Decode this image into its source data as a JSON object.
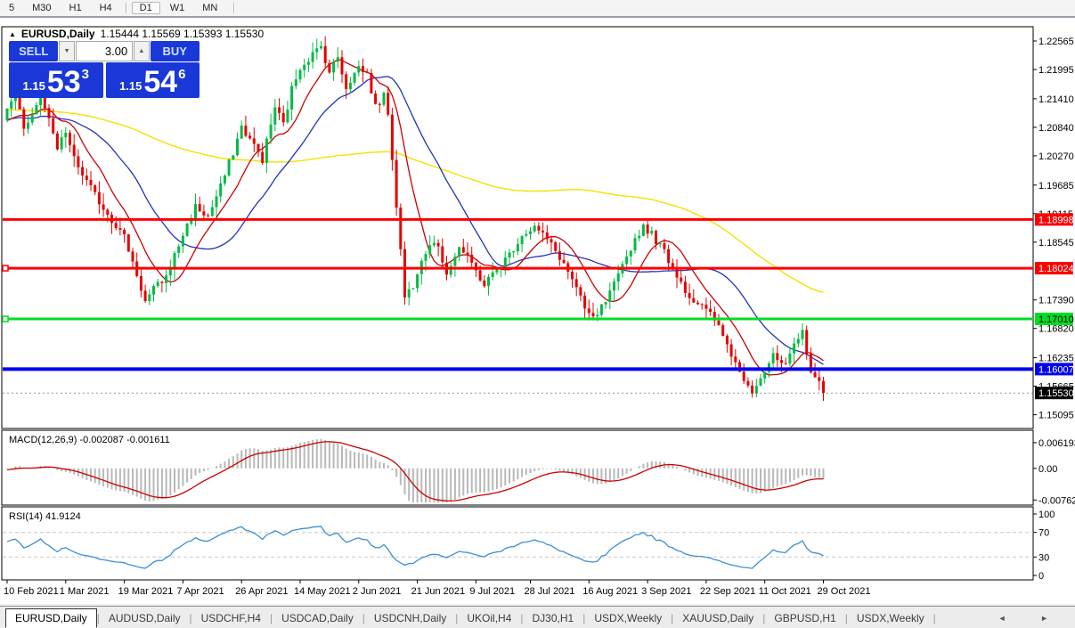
{
  "toolbar": {
    "timeframes": [
      {
        "label": "5"
      },
      {
        "label": "M30"
      },
      {
        "label": "H1"
      },
      {
        "label": "H4"
      },
      {
        "label": "D1",
        "active": true,
        "divider_before": true
      },
      {
        "label": "W1"
      },
      {
        "label": "MN"
      }
    ]
  },
  "chart_title": {
    "marker": "▲",
    "symbol": "EURUSD,Daily",
    "ohlc": "1.15444 1.15569 1.15393 1.15530"
  },
  "trade_widget": {
    "sell_label": "SELL",
    "buy_label": "BUY",
    "volume": "3.00",
    "spin_down": "▼",
    "spin_up": "▲",
    "sell_prefix": "1.15",
    "sell_main": "53",
    "sell_sup": "3",
    "buy_prefix": "1.15",
    "buy_main": "54",
    "buy_sup": "6",
    "accent": "#1a38d8"
  },
  "tabbar": {
    "tabs": [
      {
        "label": "EURUSD,Daily",
        "active": true
      },
      {
        "label": "AUDUSD,Daily"
      },
      {
        "label": "USDCHF,H4"
      },
      {
        "label": "USDCAD,Daily"
      },
      {
        "label": "USDCNH,Daily"
      },
      {
        "label": "UKOil,H4"
      },
      {
        "label": "DJ30,H1"
      },
      {
        "label": "USDX,Weekly"
      },
      {
        "label": "XAUUSD,Daily"
      },
      {
        "label": "GBPUSD,H1"
      },
      {
        "label": "USDX,Weekly"
      }
    ],
    "scroll_arrows": "◄ ►"
  },
  "chart_data": {
    "type": "candlestick",
    "symbol": "EURUSD",
    "timeframe": "Daily",
    "colors": {
      "bull": "#00bb44",
      "bear": "#e60000",
      "ma_fast": "#cc0000",
      "ma_mid": "#2233bb",
      "ma_slow": "#f2e200",
      "macd_hist": "#b8b8b8",
      "macd_signal": "#cc0000",
      "rsi_line": "#3d8fd1",
      "rsi_level": "#c8c8c8"
    },
    "price_panel": {
      "ylim": [
        1.14821,
        1.2285
      ],
      "ticks": [
        {
          "v": 1.22565,
          "label": "1.22565"
        },
        {
          "v": 1.21995,
          "label": "1.21995"
        },
        {
          "v": 1.2141,
          "label": "1.21410"
        },
        {
          "v": 1.2084,
          "label": "1.20840"
        },
        {
          "v": 1.2027,
          "label": "1.20270"
        },
        {
          "v": 1.19685,
          "label": "1.19685"
        },
        {
          "v": 1.19115,
          "label": "1.19115"
        },
        {
          "v": 1.18545,
          "label": "1.18545"
        },
        {
          "v": 1.1739,
          "label": "1.17390"
        },
        {
          "v": 1.1682,
          "label": "1.16820"
        },
        {
          "v": 1.16235,
          "label": "1.16235"
        },
        {
          "v": 1.15665,
          "label": "1.15665"
        },
        {
          "v": 1.15095,
          "label": "1.15095"
        }
      ],
      "levels": [
        {
          "price": 1.18998,
          "label": "1.18998",
          "color": "#ff0000",
          "text": "#ffffff",
          "width": 3,
          "handle": false
        },
        {
          "price": 1.18024,
          "label": "1.18024",
          "color": "#ff0000",
          "text": "#ffffff",
          "width": 3,
          "handle": true
        },
        {
          "price": 1.1701,
          "label": "1.17010",
          "color": "#00dd22",
          "text": "#000000",
          "width": 3,
          "handle": true
        },
        {
          "price": 1.16007,
          "label": "1.16007",
          "color": "#0000ee",
          "text": "#ffffff",
          "width": 4,
          "handle": false
        }
      ],
      "current_price": {
        "price": 1.1553,
        "label": "1.15530",
        "color": "#000000",
        "text": "#ffffff"
      },
      "last_close": 1.1553,
      "warmup": {
        "count": 110,
        "start": 1.215,
        "end": 1.2095
      },
      "anchors": [
        [
          0,
          1.212
        ],
        [
          2,
          1.214
        ],
        [
          4,
          1.2085
        ],
        [
          6,
          1.211
        ],
        [
          8,
          1.215
        ],
        [
          10,
          1.2095
        ],
        [
          12,
          1.204
        ],
        [
          14,
          1.2075
        ],
        [
          16,
          1.202
        ],
        [
          19,
          1.1975
        ],
        [
          22,
          1.1935
        ],
        [
          25,
          1.19
        ],
        [
          28,
          1.1865
        ],
        [
          31,
          1.179
        ],
        [
          33,
          1.1735
        ],
        [
          35,
          1.176
        ],
        [
          38,
          1.1785
        ],
        [
          42,
          1.187
        ],
        [
          45,
          1.1925
        ],
        [
          48,
          1.1905
        ],
        [
          51,
          1.1965
        ],
        [
          54,
          1.2035
        ],
        [
          56,
          1.2085
        ],
        [
          58,
          1.206
        ],
        [
          61,
          1.202
        ],
        [
          64,
          1.2125
        ],
        [
          66,
          1.209
        ],
        [
          68,
          1.216
        ],
        [
          70,
          1.2205
        ],
        [
          73,
          1.223
        ],
        [
          75,
          1.2245
        ],
        [
          77,
          1.2195
        ],
        [
          79,
          1.2225
        ],
        [
          81,
          1.2165
        ],
        [
          84,
          1.2205
        ],
        [
          86,
          1.219
        ],
        [
          88,
          1.2125
        ],
        [
          90,
          1.2145
        ],
        [
          91,
          1.2115
        ],
        [
          93,
          1.193
        ],
        [
          95,
          1.1745
        ],
        [
          97,
          1.177
        ],
        [
          99,
          1.1825
        ],
        [
          102,
          1.186
        ],
        [
          105,
          1.1795
        ],
        [
          108,
          1.1845
        ],
        [
          111,
          1.181
        ],
        [
          114,
          1.177
        ],
        [
          117,
          1.18
        ],
        [
          120,
          1.183
        ],
        [
          123,
          1.187
        ],
        [
          126,
          1.1885
        ],
        [
          129,
          1.186
        ],
        [
          132,
          1.1825
        ],
        [
          135,
          1.178
        ],
        [
          138,
          1.172
        ],
        [
          140,
          1.17
        ],
        [
          143,
          1.1735
        ],
        [
          146,
          1.1785
        ],
        [
          149,
          1.1845
        ],
        [
          152,
          1.1888
        ],
        [
          154,
          1.187
        ],
        [
          157,
          1.1835
        ],
        [
          160,
          1.179
        ],
        [
          163,
          1.1745
        ],
        [
          166,
          1.1725
        ],
        [
          169,
          1.17
        ],
        [
          172,
          1.165
        ],
        [
          175,
          1.1595
        ],
        [
          178,
          1.156
        ],
        [
          180,
          1.1585
        ],
        [
          183,
          1.1625
        ],
        [
          186,
          1.1605
        ],
        [
          188,
          1.1645
        ],
        [
          190,
          1.1675
        ],
        [
          192,
          1.16
        ],
        [
          194,
          1.157
        ],
        [
          195,
          1.1553
        ]
      ],
      "moving_averages": [
        {
          "period": 100,
          "color": "#f2e200",
          "width": 1.4
        },
        {
          "period": 25,
          "color": "#2233bb",
          "width": 1.3
        },
        {
          "period": 10,
          "color": "#cc0000",
          "width": 1.3
        }
      ]
    },
    "x_axis": {
      "ticks": [
        {
          "label": "10 Feb 2021",
          "i": 0
        },
        {
          "label": "1 Mar 2021",
          "i": 14
        },
        {
          "label": "19 Mar 2021",
          "i": 28
        },
        {
          "label": "7 Apr 2021",
          "i": 42
        },
        {
          "label": "26 Apr 2021",
          "i": 56
        },
        {
          "label": "14 May 2021",
          "i": 70
        },
        {
          "label": "2 Jun 2021",
          "i": 84
        },
        {
          "label": "21 Jun 2021",
          "i": 98
        },
        {
          "label": "9 Jul 2021",
          "i": 112
        },
        {
          "label": "28 Jul 2021",
          "i": 125
        },
        {
          "label": "16 Aug 2021",
          "i": 139
        },
        {
          "label": "3 Sep 2021",
          "i": 153
        },
        {
          "label": "22 Sep 2021",
          "i": 167
        },
        {
          "label": "11 Oct 2021",
          "i": 181
        },
        {
          "label": "29 Oct 2021",
          "i": 195
        }
      ]
    },
    "macd_panel": {
      "label": "MACD(12,26,9) -0.002087 -0.001611",
      "params": [
        12,
        26,
        9
      ],
      "value": "-0.002087",
      "signal": "-0.001611",
      "ylim": [
        -0.0082,
        0.0079
      ],
      "ticks": [
        {
          "v": 0.006193,
          "label": "0.006193"
        },
        {
          "v": 0.0,
          "label": "0.00"
        },
        {
          "v": -0.00762,
          "label": "-0.00762"
        }
      ]
    },
    "rsi_panel": {
      "label": "RSI(14) 41.9124",
      "period": 14,
      "value": "41.9124",
      "ylim": [
        0,
        100
      ],
      "levels": [
        70,
        30
      ],
      "ticks": [
        {
          "v": 100,
          "label": "100"
        },
        {
          "v": 70,
          "label": "70"
        },
        {
          "v": 30,
          "label": "30"
        },
        {
          "v": 0,
          "label": "0"
        }
      ]
    }
  }
}
